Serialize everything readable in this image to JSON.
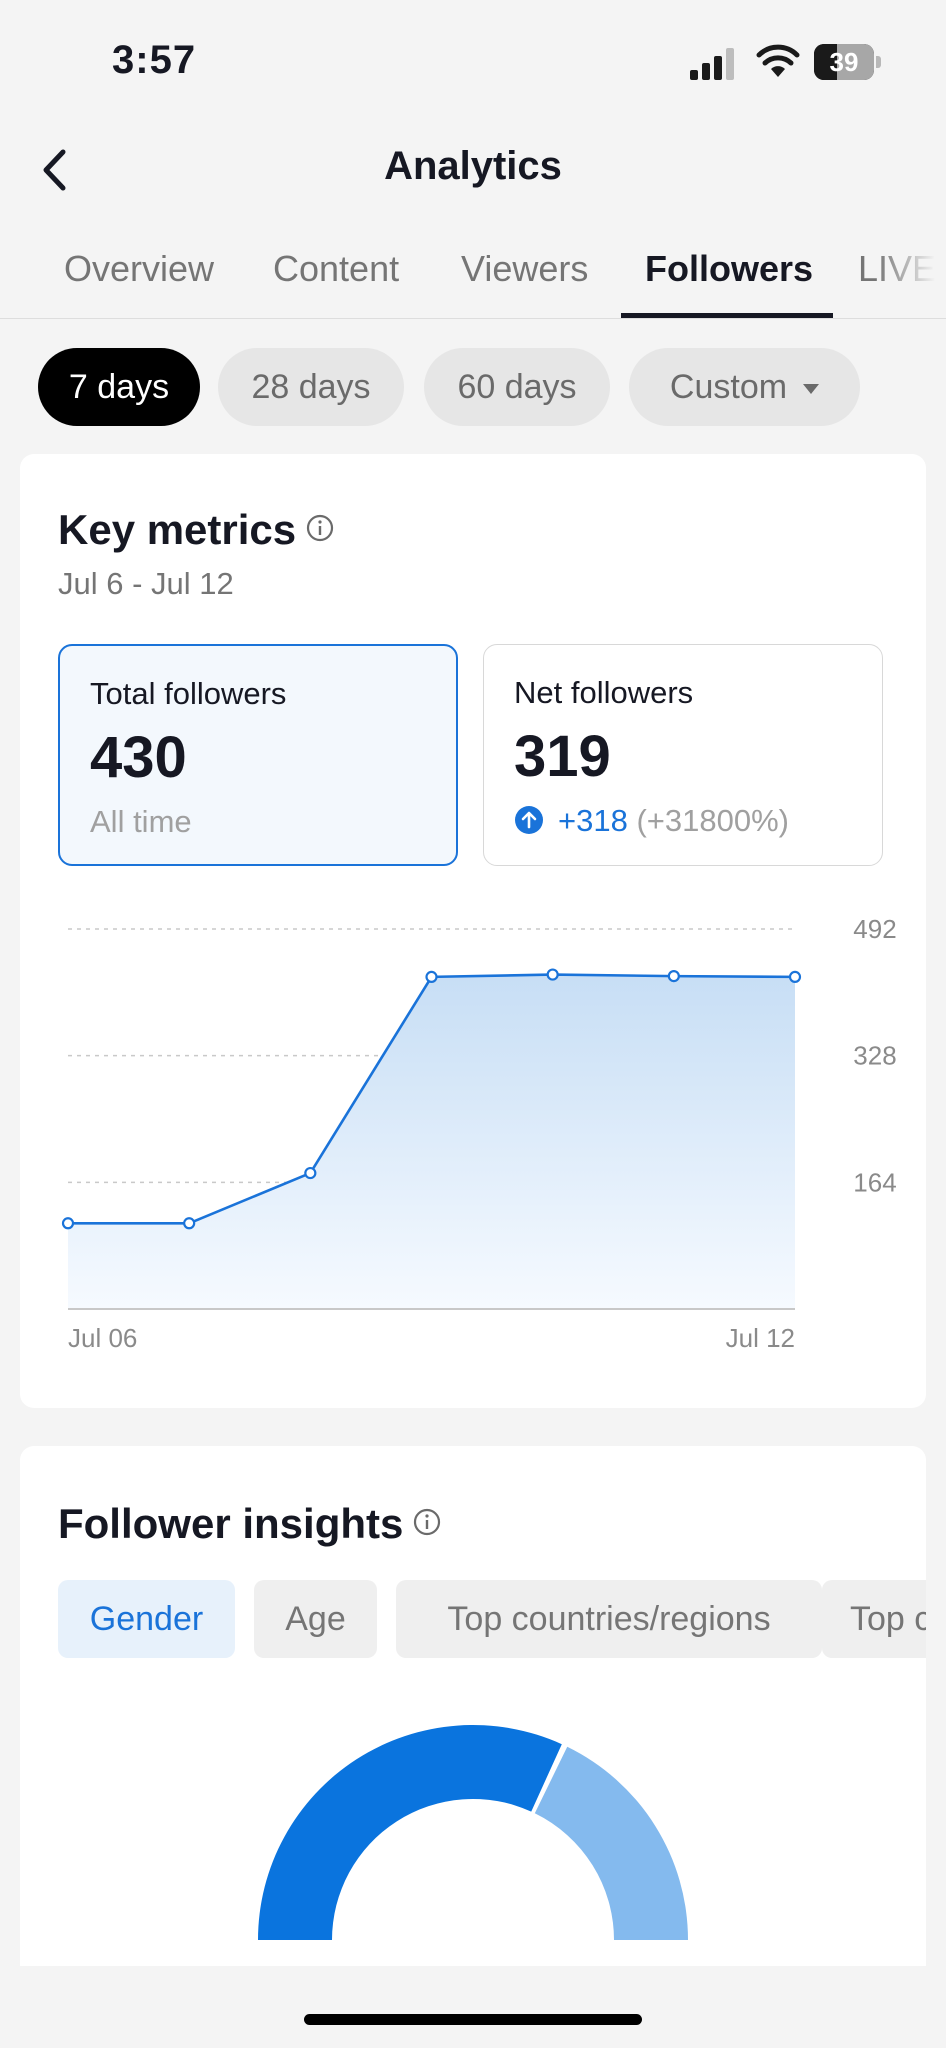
{
  "status_bar": {
    "time": "3:57",
    "battery_level": "39",
    "icons": [
      "cellular-signal-icon",
      "wifi-icon",
      "battery-icon"
    ]
  },
  "header": {
    "title": "Analytics",
    "back_icon": "chevron-left-icon"
  },
  "tabs": [
    {
      "label": "Overview",
      "active": false
    },
    {
      "label": "Content",
      "active": false
    },
    {
      "label": "Viewers",
      "active": false
    },
    {
      "label": "Followers",
      "active": true
    },
    {
      "label": "LIVE",
      "active": false
    }
  ],
  "ranges": [
    {
      "label": "7 days",
      "active": true
    },
    {
      "label": "28 days",
      "active": false
    },
    {
      "label": "60 days",
      "active": false
    },
    {
      "label": "Custom",
      "active": false
    }
  ],
  "key_metrics": {
    "title": "Key metrics",
    "date_range": "Jul 6 - Jul 12",
    "total_followers": {
      "label": "Total followers",
      "value": "430",
      "sub": "All time"
    },
    "net_followers": {
      "label": "Net followers",
      "value": "319",
      "delta": "+318",
      "delta_pct": "(+31800%)"
    }
  },
  "colors": {
    "accent": "#1a73d9",
    "donut_primary": "#0a74de",
    "donut_secondary": "#84baee",
    "text": "#161823",
    "muted": "#757575"
  },
  "chart_data": {
    "type": "area",
    "x": [
      "Jul 06",
      "Jul 07",
      "Jul 08",
      "Jul 09",
      "Jul 10",
      "Jul 11",
      "Jul 12"
    ],
    "x_tick_labels": [
      "Jul 06",
      "Jul 12"
    ],
    "series": [
      {
        "values": [
          111,
          111,
          176,
          430,
          433,
          431,
          430
        ]
      }
    ],
    "y_ticks": [
      164,
      328,
      492
    ],
    "ylim": [
      0,
      492
    ],
    "grid": true,
    "y_axis_side": "right"
  },
  "follower_insights": {
    "title": "Follower insights",
    "tabs": [
      {
        "label": "Gender",
        "active": true
      },
      {
        "label": "Age",
        "active": false
      },
      {
        "label": "Top countries/regions",
        "active": false
      },
      {
        "label": "Top cities",
        "active": false
      }
    ],
    "gender_split": {
      "primary_fraction": 0.64,
      "secondary_fraction": 0.36
    }
  }
}
